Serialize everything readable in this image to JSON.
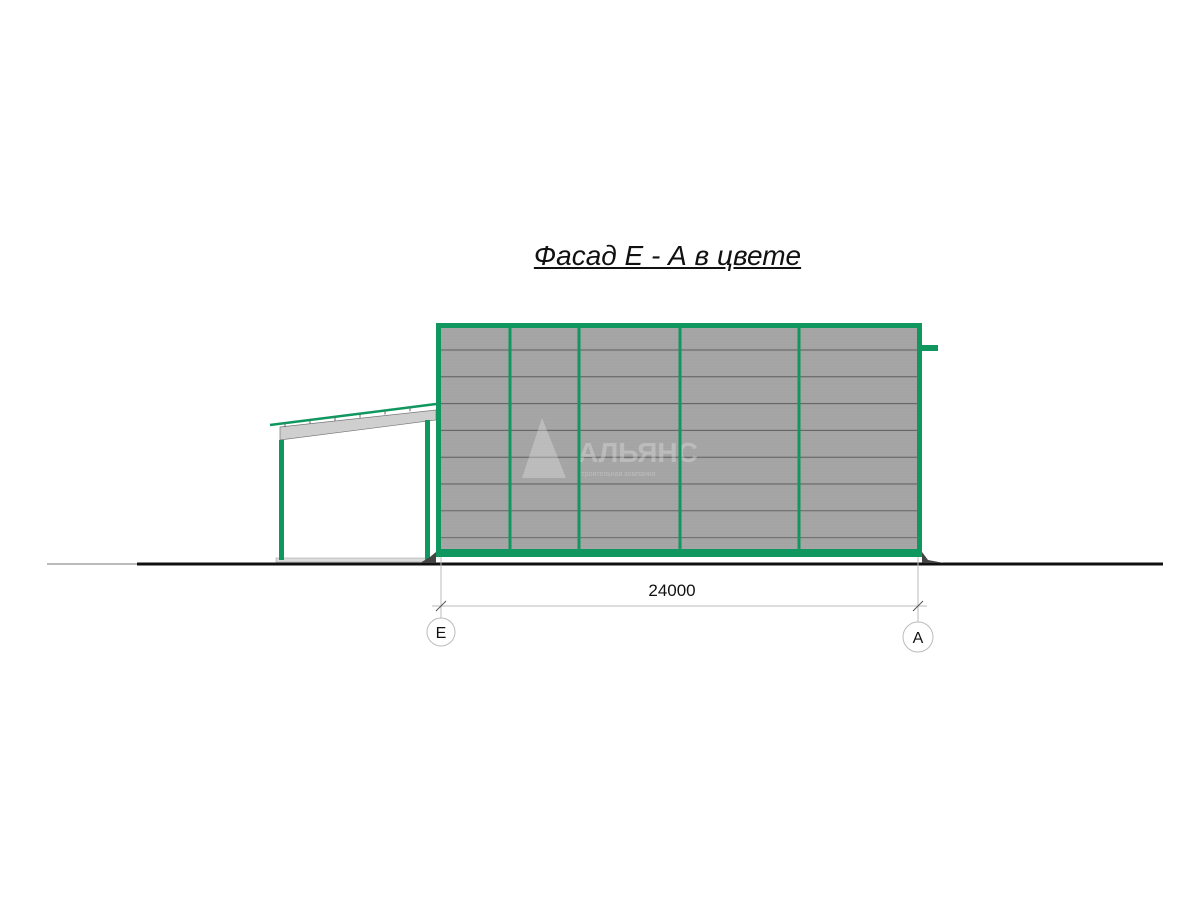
{
  "title": "Фасад Е - А в цвете",
  "dimension": "24000",
  "axes": [
    {
      "label": "Е"
    },
    {
      "label": "А"
    }
  ],
  "watermark": {
    "name": "АЛЬЯНС",
    "tagline": "строительная компания"
  },
  "colors": {
    "frame": "#10975f",
    "cladding": "#a6a6a6",
    "panel_line": "#5e5e5e",
    "ground": "#111111",
    "canopy_beam": "#cfcfcf"
  }
}
